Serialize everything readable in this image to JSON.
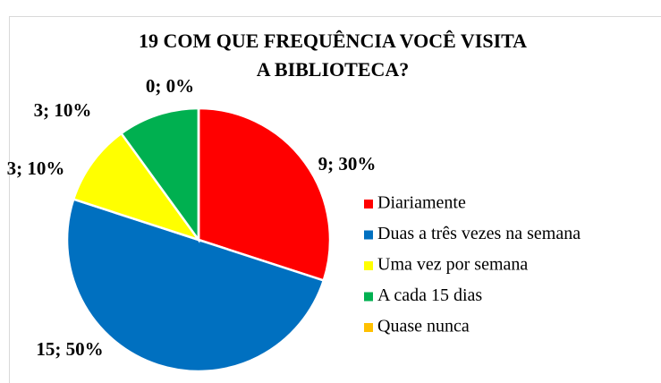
{
  "chart_data": {
    "type": "pie",
    "title": [
      "19 COM QUE FREQUÊNCIA VOCÊ VISITA",
      "A BIBLIOTECA?"
    ],
    "categories": [
      "Diariamente",
      "Duas a três vezes na semana",
      "Uma vez por semana",
      "A cada 15 dias",
      "Quase nunca"
    ],
    "values": [
      9,
      15,
      3,
      3,
      0
    ],
    "value_labels": [
      "9; 30%",
      "15; 50%",
      "3; 10%",
      "3; 10%",
      "0; 0%"
    ],
    "colors": [
      "#ff0000",
      "#0070c0",
      "#ffff00",
      "#00b050",
      "#ffc000"
    ],
    "legend": "right"
  }
}
